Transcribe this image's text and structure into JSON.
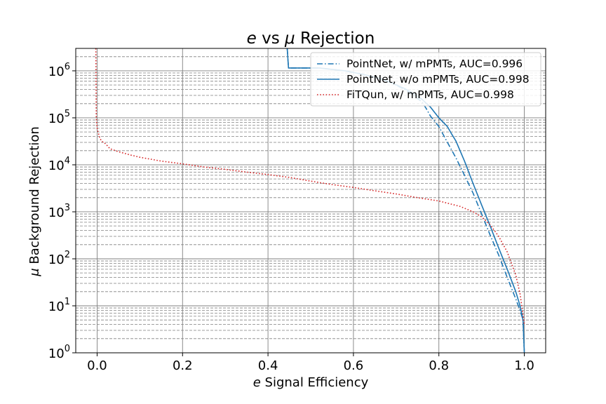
{
  "chart_data": {
    "type": "line",
    "title": {
      "italic": "e",
      "mid": " vs ",
      "italic2": "μ",
      "rest": " Rejection"
    },
    "xlabel": {
      "italic": "e",
      "rest": " Signal Efficiency"
    },
    "ylabel": {
      "italic": "μ",
      "rest": " Background Rejection"
    },
    "xlim": [
      -0.05,
      1.05
    ],
    "ylim": [
      1,
      3000000
    ],
    "yscale": "log",
    "grid": true,
    "xticks": [
      {
        "value": 0.0,
        "label": "0.0"
      },
      {
        "value": 0.2,
        "label": "0.2"
      },
      {
        "value": 0.4,
        "label": "0.4"
      },
      {
        "value": 0.6,
        "label": "0.6"
      },
      {
        "value": 0.8,
        "label": "0.8"
      },
      {
        "value": 1.0,
        "label": "1.0"
      }
    ],
    "yticks": [
      {
        "value": 1,
        "base": "10",
        "exp": "0"
      },
      {
        "value": 10,
        "base": "10",
        "exp": "1"
      },
      {
        "value": 100,
        "base": "10",
        "exp": "2"
      },
      {
        "value": 1000,
        "base": "10",
        "exp": "3"
      },
      {
        "value": 10000,
        "base": "10",
        "exp": "4"
      },
      {
        "value": 100000,
        "base": "10",
        "exp": "5"
      },
      {
        "value": 1000000,
        "base": "10",
        "exp": "6"
      }
    ],
    "legend_position": "top-right",
    "series": [
      {
        "name": "PointNet, w/ mPMTs, AUC=0.996",
        "color": "#1f77b4",
        "style": "dashdot",
        "x": [
          0.445,
          0.448,
          0.45,
          0.52,
          0.58,
          0.62,
          0.66,
          0.69,
          0.72,
          0.74,
          0.76,
          0.77,
          0.78,
          0.8,
          0.82,
          0.84,
          0.86,
          0.88,
          0.9,
          0.92,
          0.94,
          0.96,
          0.98,
          0.99,
          0.997,
          1.0
        ],
        "y": [
          3000000,
          1150000,
          1150000,
          1150000,
          1000000,
          850000,
          700000,
          550000,
          400000,
          300000,
          220000,
          160000,
          110000,
          65000,
          30000,
          14000,
          6000,
          2500,
          900,
          320,
          120,
          40,
          14,
          8,
          5,
          1
        ]
      },
      {
        "name": "PointNet, w/o mPMTs, AUC=0.998",
        "color": "#1f77b4",
        "style": "solid",
        "x": [
          0.445,
          0.448,
          0.45,
          0.52,
          0.58,
          0.62,
          0.66,
          0.69,
          0.72,
          0.74,
          0.76,
          0.78,
          0.8,
          0.82,
          0.83,
          0.84,
          0.86,
          0.88,
          0.9,
          0.92,
          0.94,
          0.96,
          0.98,
          0.99,
          0.997,
          1.0
        ],
        "y": [
          3000000,
          1150000,
          1150000,
          1150000,
          1000000,
          850000,
          700000,
          550000,
          420000,
          330000,
          250000,
          170000,
          100000,
          65000,
          45000,
          32000,
          12000,
          4000,
          1400,
          500,
          170,
          60,
          20,
          10,
          5,
          1
        ]
      },
      {
        "name": "FiTQun, w/ mPMTs, AUC=0.998",
        "color": "#d62728",
        "style": "dotted",
        "x": [
          -0.003,
          -0.002,
          0.0,
          0.005,
          0.01,
          0.02,
          0.03,
          0.05,
          0.08,
          0.1,
          0.15,
          0.2,
          0.25,
          0.3,
          0.35,
          0.4,
          0.45,
          0.5,
          0.55,
          0.6,
          0.65,
          0.7,
          0.75,
          0.8,
          0.85,
          0.88,
          0.9,
          0.92,
          0.94,
          0.96,
          0.98,
          0.99,
          1.0
        ],
        "y": [
          3000000,
          100000,
          60000,
          40000,
          32000,
          28000,
          22000,
          19000,
          16000,
          14500,
          12000,
          10500,
          9000,
          8000,
          7000,
          6200,
          5400,
          4500,
          3800,
          3300,
          2800,
          2400,
          2000,
          1700,
          1300,
          1000,
          780,
          530,
          300,
          140,
          45,
          18,
          4
        ]
      }
    ]
  }
}
